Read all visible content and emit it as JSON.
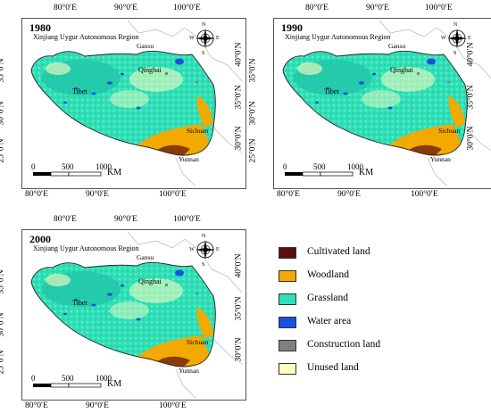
{
  "panels": [
    {
      "year": "1980"
    },
    {
      "year": "1990"
    },
    {
      "year": "2000"
    }
  ],
  "regions": {
    "xinjiang": "Xinjiang Uygur Autonomous Region",
    "gansu": "Gansu",
    "qinghai": "Qinghai",
    "tibet": "Tibet",
    "sichuan": "Sichuan",
    "yunnan": "Yunnan"
  },
  "axes": {
    "lon_labels": [
      "80°0′E",
      "90°0′E",
      "100°0′E"
    ],
    "lat_labels_left": [
      "35°0′N",
      "30°0′N",
      "25°0′N"
    ],
    "lat_labels_right": [
      "40°0′N",
      "35°0′N",
      "30°0′N"
    ]
  },
  "compass": {
    "n": "N",
    "s": "S",
    "e": "E",
    "w": "W"
  },
  "scale_bar": {
    "ticks": [
      "0",
      "500",
      "1000"
    ],
    "unit": "KM"
  },
  "legend": [
    {
      "label": "Cultivated land",
      "color": "#5a0e0e"
    },
    {
      "label": "Woodland",
      "color": "#f2a900"
    },
    {
      "label": "Grassland",
      "color": "#2ee0b8"
    },
    {
      "label": "Water area",
      "color": "#1652e0"
    },
    {
      "label": "Construction land",
      "color": "#808080"
    },
    {
      "label": "Unused land",
      "color": "#fffec0"
    }
  ]
}
